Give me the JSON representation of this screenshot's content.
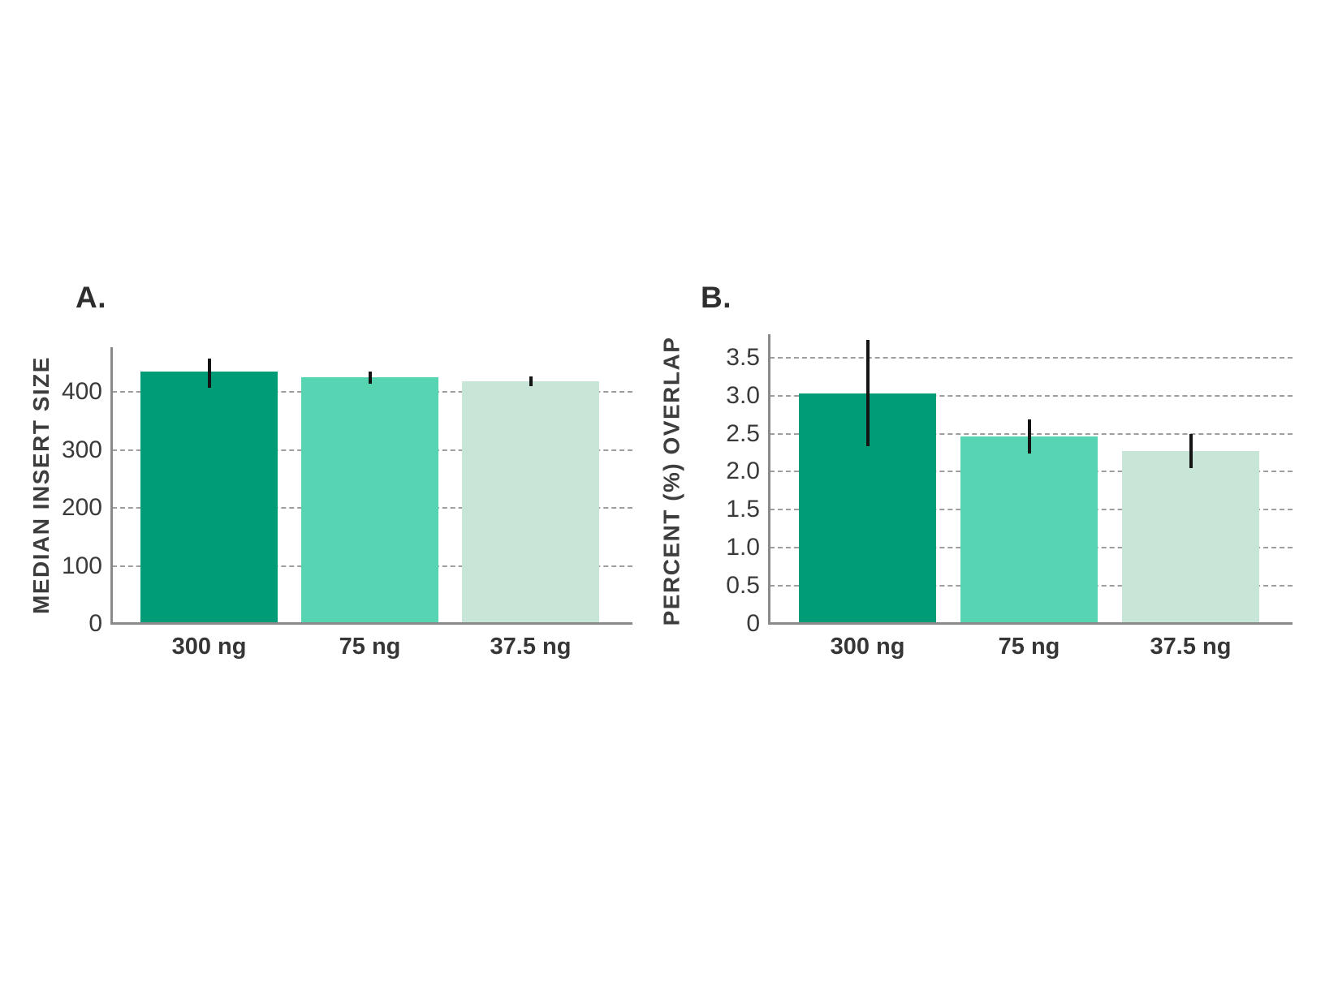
{
  "figure": {
    "background": "#ffffff",
    "text_color": "#3a3a3a",
    "grid_color": "#9e9e9e",
    "axis_color": "#8a8a8a",
    "error_bar_color": "#141414"
  },
  "chart_data": [
    {
      "type": "bar",
      "panel_label": "A.",
      "title": "",
      "xlabel": "",
      "ylabel": "MEDIAN INSERT SIZE",
      "categories": [
        "300 ng",
        "75 ng",
        "37.5 ng"
      ],
      "values": [
        435,
        425,
        418
      ],
      "error_low": [
        407,
        414,
        410
      ],
      "error_high": [
        457,
        435,
        427
      ],
      "bar_colors": [
        "#009b77",
        "#57d4b2",
        "#c8e6d8"
      ],
      "ylim": [
        0,
        477
      ],
      "yticks": [
        0,
        100,
        200,
        300,
        400
      ],
      "ytick_labels": [
        "0",
        "100",
        "200",
        "300",
        "400"
      ],
      "grid": "horizontal-dashed",
      "legend": "none"
    },
    {
      "type": "bar",
      "panel_label": "B.",
      "title": "",
      "xlabel": "",
      "ylabel": "PERCENT (%) OVERLAP",
      "categories": [
        "300 ng",
        "75 ng",
        "37.5 ng"
      ],
      "values": [
        3.03,
        2.46,
        2.27
      ],
      "error_low": [
        2.34,
        2.24,
        2.05
      ],
      "error_high": [
        3.73,
        2.69,
        2.5
      ],
      "bar_colors": [
        "#009b77",
        "#57d4b2",
        "#c8e6d8"
      ],
      "ylim": [
        0,
        3.8
      ],
      "yticks": [
        0,
        0.5,
        1.0,
        1.5,
        2.0,
        2.5,
        3.0,
        3.5
      ],
      "ytick_labels": [
        "0",
        "0.5",
        "1.0",
        "1.5",
        "2.0",
        "2.5",
        "3.0",
        "3.5"
      ],
      "grid": "horizontal-dashed",
      "legend": "none"
    }
  ]
}
